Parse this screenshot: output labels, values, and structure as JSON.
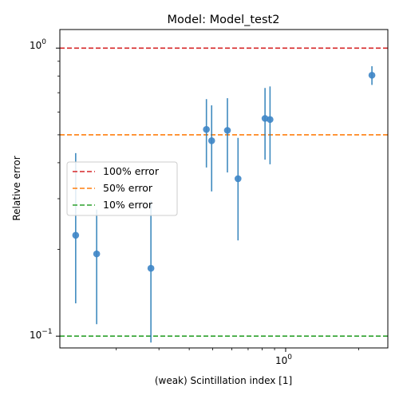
{
  "chart_data": {
    "type": "scatter",
    "title": "Model: Model_test2",
    "xlabel": "(weak) Scintillation index [1]",
    "ylabel": "Relative error",
    "xscale": "log",
    "yscale": "log",
    "xlim": [
      0.117,
      2.64
    ],
    "ylim": [
      0.091,
      1.16
    ],
    "grid": false,
    "legend_placement": "center-left",
    "y_ticks": [
      {
        "value": 1.0,
        "label": "10^0"
      },
      {
        "value": 0.1,
        "label": "10^-1"
      }
    ],
    "x_ticks": [
      {
        "value": 1.0,
        "label": "10^0"
      }
    ],
    "tick_label_parts": {
      "y_top_base": "10",
      "y_top_exp": "0",
      "y_bottom_base": "10",
      "y_bottom_exp": "−1",
      "x_base": "10",
      "x_exp": "0"
    },
    "points_color": "#3d85c6",
    "points": [
      {
        "x": 0.136,
        "y": 0.224,
        "err_low": 0.13,
        "err_high": 0.432
      },
      {
        "x": 0.166,
        "y": 0.193,
        "err_low": 0.11,
        "err_high": 0.275
      },
      {
        "x": 0.278,
        "y": 0.172,
        "err_low": 0.095,
        "err_high": 0.295
      },
      {
        "x": 0.471,
        "y": 0.522,
        "err_low": 0.385,
        "err_high": 0.665
      },
      {
        "x": 0.495,
        "y": 0.477,
        "err_low": 0.318,
        "err_high": 0.633
      },
      {
        "x": 0.575,
        "y": 0.518,
        "err_low": 0.37,
        "err_high": 0.67
      },
      {
        "x": 0.636,
        "y": 0.352,
        "err_low": 0.215,
        "err_high": 0.488
      },
      {
        "x": 0.822,
        "y": 0.57,
        "err_low": 0.41,
        "err_high": 0.727
      },
      {
        "x": 0.862,
        "y": 0.565,
        "err_low": 0.395,
        "err_high": 0.736
      },
      {
        "x": 2.27,
        "y": 0.805,
        "err_low": 0.745,
        "err_high": 0.865
      }
    ],
    "reference_lines": [
      {
        "label": "100% error",
        "y": 1.0,
        "color": "#d62728"
      },
      {
        "label": "50% error",
        "y": 0.5,
        "color": "#ff7f0e"
      },
      {
        "label": "10% error",
        "y": 0.1,
        "color": "#2ca02c"
      }
    ]
  }
}
